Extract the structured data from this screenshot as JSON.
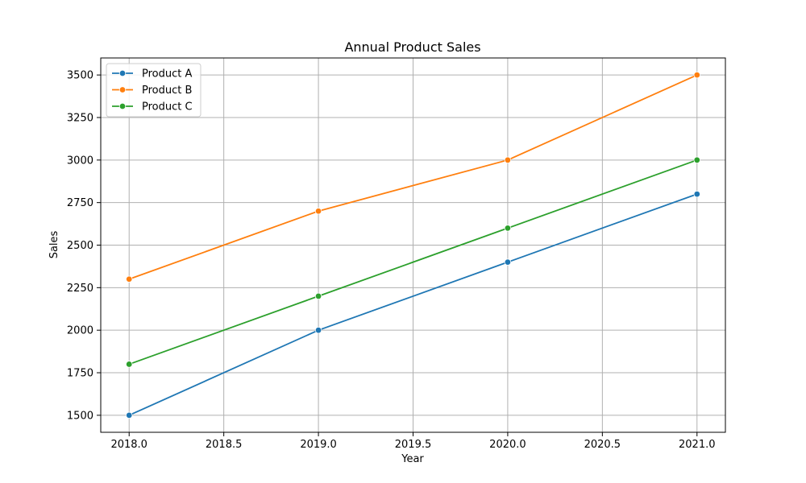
{
  "chart_data": {
    "type": "line",
    "title": "Annual Product Sales",
    "xlabel": "Year",
    "ylabel": "Sales",
    "x": [
      2018,
      2019,
      2020,
      2021
    ],
    "xlim": [
      2017.85,
      2021.15
    ],
    "ylim": [
      1400,
      3600
    ],
    "xticks": [
      2018.0,
      2018.5,
      2019.0,
      2019.5,
      2020.0,
      2020.5,
      2021.0
    ],
    "xtick_labels": [
      "2018.0",
      "2018.5",
      "2019.0",
      "2019.5",
      "2020.0",
      "2020.5",
      "2021.0"
    ],
    "yticks": [
      1500,
      1750,
      2000,
      2250,
      2500,
      2750,
      3000,
      3250,
      3500
    ],
    "ytick_labels": [
      "1500",
      "1750",
      "2000",
      "2250",
      "2500",
      "2750",
      "3000",
      "3250",
      "3500"
    ],
    "grid": true,
    "legend_position": "top-left",
    "series": [
      {
        "name": "Product A",
        "color": "#1f77b4",
        "values": [
          1500,
          2000,
          2400,
          2800
        ]
      },
      {
        "name": "Product B",
        "color": "#ff7f0e",
        "values": [
          2300,
          2700,
          3000,
          3500
        ]
      },
      {
        "name": "Product C",
        "color": "#2ca02c",
        "values": [
          1800,
          2200,
          2600,
          3000
        ]
      }
    ]
  }
}
